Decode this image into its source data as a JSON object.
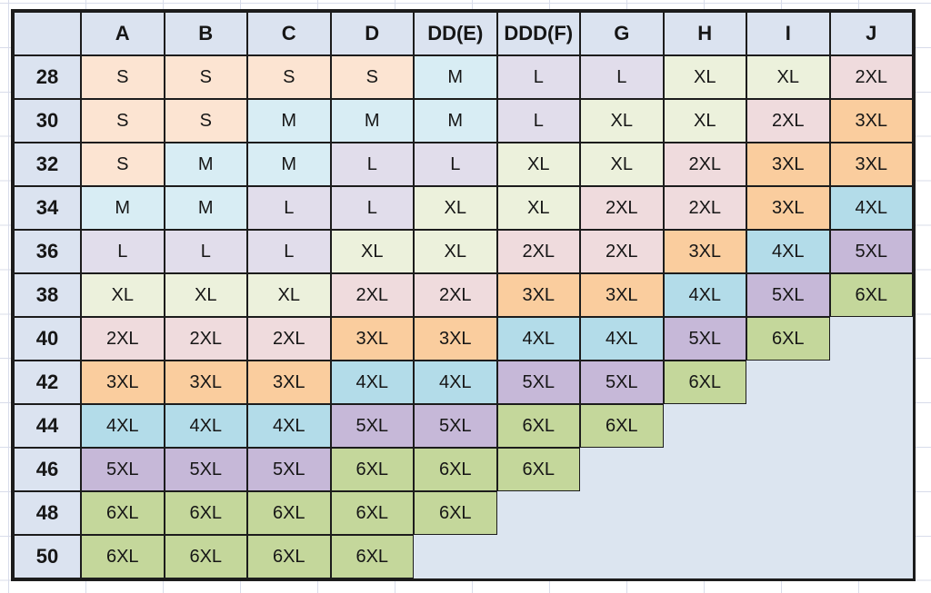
{
  "table": {
    "corner_label": "",
    "columns": [
      "A",
      "B",
      "C",
      "D",
      "DD(E)",
      "DDD(F)",
      "G",
      "H",
      "I",
      "J"
    ],
    "rows": [
      {
        "band": "28",
        "cells": [
          "S",
          "S",
          "S",
          "S",
          "M",
          "L",
          "L",
          "XL",
          "XL",
          "2XL"
        ]
      },
      {
        "band": "30",
        "cells": [
          "S",
          "S",
          "M",
          "M",
          "M",
          "L",
          "XL",
          "XL",
          "2XL",
          "3XL"
        ]
      },
      {
        "band": "32",
        "cells": [
          "S",
          "M",
          "M",
          "L",
          "L",
          "XL",
          "XL",
          "2XL",
          "3XL",
          "3XL"
        ]
      },
      {
        "band": "34",
        "cells": [
          "M",
          "M",
          "L",
          "L",
          "XL",
          "XL",
          "2XL",
          "2XL",
          "3XL",
          "4XL"
        ]
      },
      {
        "band": "36",
        "cells": [
          "L",
          "L",
          "L",
          "XL",
          "XL",
          "2XL",
          "2XL",
          "3XL",
          "4XL",
          "5XL"
        ]
      },
      {
        "band": "38",
        "cells": [
          "XL",
          "XL",
          "XL",
          "2XL",
          "2XL",
          "3XL",
          "3XL",
          "4XL",
          "5XL",
          "6XL"
        ]
      },
      {
        "band": "40",
        "cells": [
          "2XL",
          "2XL",
          "2XL",
          "3XL",
          "3XL",
          "4XL",
          "4XL",
          "5XL",
          "6XL",
          ""
        ]
      },
      {
        "band": "42",
        "cells": [
          "3XL",
          "3XL",
          "3XL",
          "4XL",
          "4XL",
          "5XL",
          "5XL",
          "6XL",
          "",
          ""
        ]
      },
      {
        "band": "44",
        "cells": [
          "4XL",
          "4XL",
          "4XL",
          "5XL",
          "5XL",
          "6XL",
          "6XL",
          "",
          "",
          ""
        ]
      },
      {
        "band": "46",
        "cells": [
          "5XL",
          "5XL",
          "5XL",
          "6XL",
          "6XL",
          "6XL",
          "",
          "",
          "",
          ""
        ]
      },
      {
        "band": "48",
        "cells": [
          "6XL",
          "6XL",
          "6XL",
          "6XL",
          "6XL",
          "",
          "",
          "",
          "",
          ""
        ]
      },
      {
        "band": "50",
        "cells": [
          "6XL",
          "6XL",
          "6XL",
          "6XL",
          "",
          "",
          "",
          "",
          "",
          ""
        ]
      }
    ],
    "size_colors": {
      "S": "#FCE4D2",
      "M": "#D8EDF4",
      "L": "#E1DDEB",
      "XL": "#ECF1DC",
      "2XL": "#EFDBDD",
      "3XL": "#FACD9E",
      "4XL": "#B3DCE9",
      "5XL": "#C6B8D8",
      "6XL": "#C4D79B"
    },
    "header_fill": "#DBE3F0",
    "empty_fill": "#DCE5F0",
    "border_color": "#1c1c1c",
    "gridline_color": "#D8DCEA",
    "page_background": "#FFFFFF"
  }
}
